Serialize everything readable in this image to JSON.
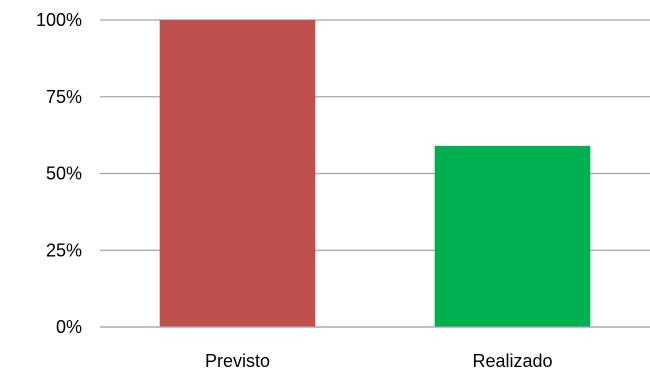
{
  "chart_data": {
    "type": "bar",
    "categories": [
      "Previsto",
      "Realizado"
    ],
    "values": [
      100,
      59
    ],
    "colors": [
      "#c0504d",
      "#00b050"
    ],
    "y_ticks": [
      0,
      25,
      50,
      75,
      100
    ],
    "y_tick_labels": [
      "0%",
      "25%",
      "50%",
      "75%",
      "100%"
    ],
    "ylim": [
      0,
      100
    ],
    "grid": true,
    "legend": "none",
    "title": "",
    "xlabel": "",
    "ylabel": ""
  }
}
